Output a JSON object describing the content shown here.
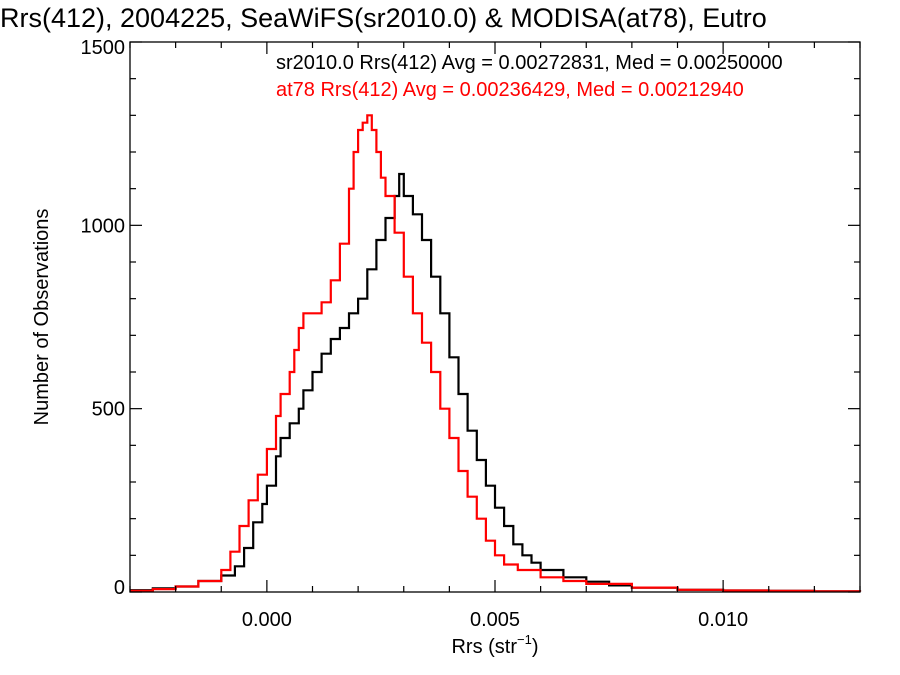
{
  "chart_data": {
    "type": "line",
    "title": "Rrs(412), 2004225, SeaWiFS(sr2010.0) & MODISA(at78), Eutro",
    "xlabel": "Rrs (str",
    "xlabel_sup": "−1",
    "xlabel_close": ")",
    "ylabel": "Number of Observations",
    "xlim": [
      -0.003,
      0.013
    ],
    "ylim": [
      0,
      1500
    ],
    "x_ticks": [
      0.0,
      0.005,
      0.01
    ],
    "x_tick_labels": [
      "0.000",
      "0.005",
      "0.010"
    ],
    "y_ticks": [
      0,
      500,
      1000,
      1500
    ],
    "y_tick_labels": [
      "0",
      "500",
      "1000",
      "1500"
    ],
    "grid": false,
    "annotations": [
      {
        "text": "sr2010.0 Rrs(412) Avg = 0.00272831, Med = 0.00250000",
        "color": "#000000"
      },
      {
        "text": "at78 Rrs(412) Avg = 0.00236429, Med = 0.00212940",
        "color": "#ff0000"
      }
    ],
    "series": [
      {
        "color": "#000000",
        "points": [
          [
            -0.003,
            5
          ],
          [
            -0.0025,
            10
          ],
          [
            -0.002,
            15
          ],
          [
            -0.0015,
            30
          ],
          [
            -0.001,
            45
          ],
          [
            -0.0007,
            70
          ],
          [
            -0.0005,
            120
          ],
          [
            -0.0003,
            190
          ],
          [
            -0.0001,
            240
          ],
          [
            0.0,
            290
          ],
          [
            0.0002,
            370
          ],
          [
            0.0003,
            420
          ],
          [
            0.0005,
            460
          ],
          [
            0.0007,
            500
          ],
          [
            0.0008,
            550
          ],
          [
            0.001,
            600
          ],
          [
            0.0012,
            650
          ],
          [
            0.0014,
            690
          ],
          [
            0.0016,
            720
          ],
          [
            0.0018,
            760
          ],
          [
            0.002,
            800
          ],
          [
            0.0022,
            880
          ],
          [
            0.0024,
            960
          ],
          [
            0.0026,
            1020
          ],
          [
            0.0028,
            1080
          ],
          [
            0.0029,
            1140
          ],
          [
            0.003,
            1080
          ],
          [
            0.0032,
            1030
          ],
          [
            0.0034,
            960
          ],
          [
            0.0036,
            860
          ],
          [
            0.0038,
            760
          ],
          [
            0.004,
            640
          ],
          [
            0.0042,
            540
          ],
          [
            0.0044,
            440
          ],
          [
            0.0046,
            360
          ],
          [
            0.0048,
            290
          ],
          [
            0.005,
            230
          ],
          [
            0.0052,
            180
          ],
          [
            0.0054,
            130
          ],
          [
            0.0056,
            100
          ],
          [
            0.0058,
            80
          ],
          [
            0.006,
            60
          ],
          [
            0.0065,
            40
          ],
          [
            0.007,
            28
          ],
          [
            0.0075,
            18
          ],
          [
            0.008,
            12
          ],
          [
            0.009,
            6
          ],
          [
            0.01,
            4
          ],
          [
            0.011,
            3
          ],
          [
            0.012,
            2
          ],
          [
            0.013,
            1
          ]
        ]
      },
      {
        "color": "#ff0000",
        "points": [
          [
            -0.003,
            3
          ],
          [
            -0.0025,
            8
          ],
          [
            -0.002,
            15
          ],
          [
            -0.0015,
            30
          ],
          [
            -0.001,
            60
          ],
          [
            -0.0008,
            110
          ],
          [
            -0.0006,
            180
          ],
          [
            -0.0004,
            250
          ],
          [
            -0.0002,
            320
          ],
          [
            0.0,
            390
          ],
          [
            0.0002,
            480
          ],
          [
            0.0003,
            540
          ],
          [
            0.0005,
            600
          ],
          [
            0.0006,
            660
          ],
          [
            0.0007,
            720
          ],
          [
            0.0008,
            760
          ],
          [
            0.001,
            760
          ],
          [
            0.0012,
            790
          ],
          [
            0.0014,
            850
          ],
          [
            0.0016,
            950
          ],
          [
            0.0018,
            1100
          ],
          [
            0.0019,
            1200
          ],
          [
            0.002,
            1260
          ],
          [
            0.0021,
            1280
          ],
          [
            0.0022,
            1300
          ],
          [
            0.0023,
            1260
          ],
          [
            0.0024,
            1200
          ],
          [
            0.0025,
            1130
          ],
          [
            0.0026,
            1080
          ],
          [
            0.0028,
            980
          ],
          [
            0.003,
            860
          ],
          [
            0.0032,
            760
          ],
          [
            0.0034,
            680
          ],
          [
            0.0036,
            600
          ],
          [
            0.0038,
            500
          ],
          [
            0.004,
            420
          ],
          [
            0.0042,
            330
          ],
          [
            0.0044,
            260
          ],
          [
            0.0046,
            200
          ],
          [
            0.0048,
            140
          ],
          [
            0.005,
            100
          ],
          [
            0.0052,
            75
          ],
          [
            0.0055,
            60
          ],
          [
            0.006,
            40
          ],
          [
            0.0065,
            30
          ],
          [
            0.007,
            22
          ],
          [
            0.008,
            12
          ],
          [
            0.009,
            6
          ],
          [
            0.01,
            4
          ],
          [
            0.011,
            3
          ],
          [
            0.012,
            2
          ],
          [
            0.013,
            1
          ]
        ]
      }
    ]
  }
}
